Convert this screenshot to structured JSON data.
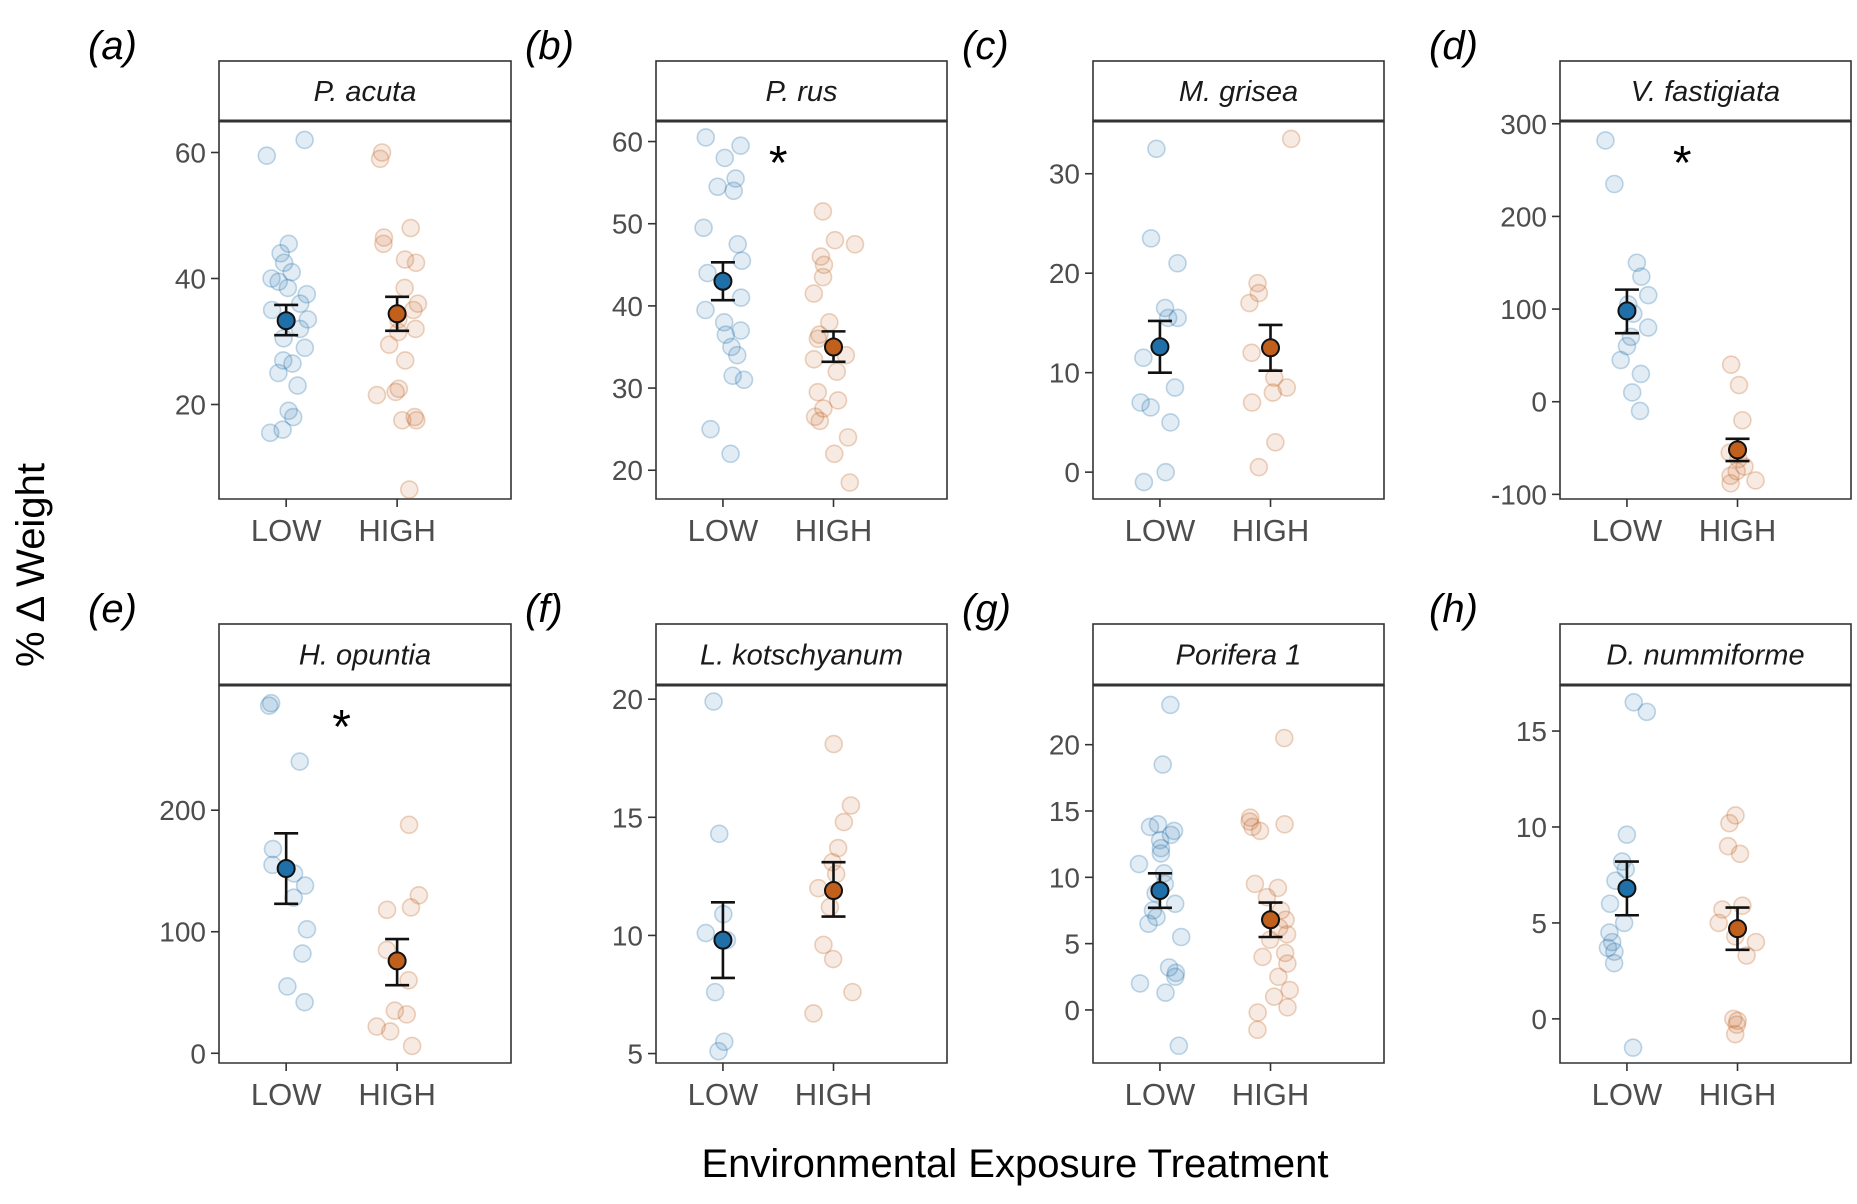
{
  "chart_data": {
    "type": "scatter",
    "xlabel": "Environmental Exposure Treatment",
    "ylabel": "% Δ Weight",
    "categories": [
      "LOW",
      "HIGH"
    ],
    "colors": {
      "LOW": "#1f6fa8",
      "HIGH": "#c0601c"
    },
    "panels": [
      {
        "tag": "(a)",
        "species": "P. acuta",
        "sig": "",
        "ylim": [
          5,
          65
        ],
        "yticks": [
          20,
          40,
          60
        ],
        "points": {
          "LOW": [
            62,
            59.5,
            45.5,
            44,
            42.5,
            41,
            40,
            39.5,
            38.5,
            37.5,
            36,
            35,
            33.5,
            32,
            30.5,
            29,
            27,
            26.5,
            25,
            23,
            19,
            18,
            16,
            15.5
          ],
          "HIGH": [
            60,
            59,
            48,
            46.5,
            45.5,
            43,
            42.5,
            38.5,
            36,
            35,
            33.5,
            32,
            31.5,
            29.5,
            27,
            22.5,
            22,
            21.5,
            18,
            17.5,
            17.5,
            6.5
          ]
        },
        "summary": {
          "LOW": {
            "mean": 33.3,
            "lower": 31,
            "upper": 35.8
          },
          "HIGH": {
            "mean": 34.4,
            "lower": 31.7,
            "upper": 37.1
          }
        }
      },
      {
        "tag": "(b)",
        "species": "P. rus",
        "sig": "*",
        "ylim": [
          16.5,
          62.5
        ],
        "yticks": [
          20,
          30,
          40,
          50,
          60
        ],
        "points": {
          "LOW": [
            60.5,
            59.5,
            58,
            55.5,
            54.5,
            54,
            49.5,
            47.5,
            45.5,
            44,
            41,
            39.5,
            38,
            37,
            36.5,
            35,
            34,
            31.5,
            31,
            25,
            22
          ],
          "HIGH": [
            51.5,
            48,
            47.5,
            46,
            45,
            43.5,
            41.5,
            38,
            36.5,
            36,
            34,
            33.5,
            32,
            29.5,
            28.5,
            27.5,
            26.5,
            26,
            24,
            22,
            18.5
          ]
        },
        "summary": {
          "LOW": {
            "mean": 43,
            "lower": 40.7,
            "upper": 45.3
          },
          "HIGH": {
            "mean": 35,
            "lower": 33.2,
            "upper": 36.9
          }
        }
      },
      {
        "tag": "(c)",
        "species": "M. grisea",
        "sig": "",
        "ylim": [
          -2.7,
          35.3
        ],
        "yticks": [
          0,
          10,
          20,
          30
        ],
        "points": {
          "LOW": [
            32.5,
            23.5,
            21,
            16.5,
            15.5,
            15.5,
            11.5,
            8.5,
            7,
            6.5,
            5,
            0,
            -1
          ],
          "HIGH": [
            33.5,
            19,
            18,
            17,
            12,
            9.5,
            8.5,
            8,
            7,
            3,
            0.5
          ]
        },
        "summary": {
          "LOW": {
            "mean": 12.6,
            "lower": 10,
            "upper": 15.2
          },
          "HIGH": {
            "mean": 12.5,
            "lower": 10.2,
            "upper": 14.8
          }
        }
      },
      {
        "tag": "(d)",
        "species": "V. fastigiata",
        "sig": "*",
        "ylim": [
          -105,
          303
        ],
        "yticks": [
          -100,
          0,
          100,
          200,
          300
        ],
        "points": {
          "LOW": [
            282,
            235,
            150,
            135,
            115,
            105,
            95,
            80,
            70,
            60,
            45,
            30,
            10,
            -10
          ],
          "HIGH": [
            40,
            18,
            -20,
            -55,
            -62,
            -70,
            -75,
            -80,
            -85,
            -88
          ]
        },
        "summary": {
          "LOW": {
            "mean": 98,
            "lower": 74,
            "upper": 121
          },
          "HIGH": {
            "mean": -52,
            "lower": -64,
            "upper": -40
          }
        }
      },
      {
        "tag": "(e)",
        "species": "H. opuntia",
        "sig": "*",
        "ylim": [
          -8,
          303
        ],
        "yticks": [
          0,
          100,
          200
        ],
        "points": {
          "LOW": [
            288,
            286,
            240,
            168,
            155,
            148,
            138,
            128,
            102,
            82,
            55,
            42
          ],
          "HIGH": [
            188,
            130,
            120,
            118,
            85,
            60,
            35,
            32,
            22,
            18,
            6
          ]
        },
        "summary": {
          "LOW": {
            "mean": 152,
            "lower": 123,
            "upper": 181
          },
          "HIGH": {
            "mean": 76,
            "lower": 56,
            "upper": 94
          }
        }
      },
      {
        "tag": "(f)",
        "species": "L. kotschyanum",
        "sig": "",
        "ylim": [
          4.6,
          20.6
        ],
        "yticks": [
          5,
          10,
          15,
          20
        ],
        "points": {
          "LOW": [
            19.9,
            14.3,
            10.9,
            10.1,
            9.8,
            7.6,
            5.5,
            5.1
          ],
          "HIGH": [
            18.1,
            15.5,
            14.8,
            13.7,
            13.1,
            12.6,
            12,
            11.2,
            9.6,
            9,
            7.6,
            6.7
          ]
        },
        "summary": {
          "LOW": {
            "mean": 9.8,
            "lower": 8.2,
            "upper": 11.4
          },
          "HIGH": {
            "mean": 11.9,
            "lower": 10.8,
            "upper": 13.1
          }
        }
      },
      {
        "tag": "(g)",
        "species": "Porifera 1",
        "sig": "",
        "ylim": [
          -4,
          24.5
        ],
        "yticks": [
          0,
          5,
          10,
          15,
          20
        ],
        "points": {
          "LOW": [
            23,
            18.5,
            14,
            13.8,
            13.5,
            13.2,
            12.8,
            12.2,
            11.8,
            11,
            10.3,
            9.5,
            8.8,
            8,
            7.5,
            7,
            6.5,
            5.5,
            3.2,
            2.8,
            2.5,
            2,
            1.3,
            -2.7
          ],
          "HIGH": [
            20.5,
            14.5,
            14.2,
            14,
            13.8,
            13.5,
            9.5,
            9.2,
            8.5,
            7.5,
            6.8,
            6.2,
            5.7,
            5.3,
            4.3,
            4,
            3.5,
            2.5,
            1.5,
            1,
            0.2,
            -0.2,
            -1.5
          ]
        },
        "summary": {
          "LOW": {
            "mean": 9,
            "lower": 7.7,
            "upper": 10.3
          },
          "HIGH": {
            "mean": 6.8,
            "lower": 5.5,
            "upper": 8.1
          }
        }
      },
      {
        "tag": "(h)",
        "species": "D. nummiforme",
        "sig": "",
        "ylim": [
          -2.3,
          17.4
        ],
        "yticks": [
          0,
          5,
          10,
          15
        ],
        "points": {
          "LOW": [
            16.5,
            16,
            9.6,
            8.2,
            7.8,
            7.2,
            6,
            5,
            4.5,
            4,
            3.7,
            3.5,
            2.9,
            -1.5
          ],
          "HIGH": [
            10.6,
            10.2,
            9,
            8.6,
            5.9,
            5.7,
            5,
            4.3,
            4,
            3.3,
            0,
            -0.1,
            -0.3,
            -0.8
          ]
        },
        "summary": {
          "LOW": {
            "mean": 6.8,
            "lower": 5.4,
            "upper": 8.2
          },
          "HIGH": {
            "mean": 4.7,
            "lower": 3.6,
            "upper": 5.8
          }
        }
      }
    ]
  }
}
